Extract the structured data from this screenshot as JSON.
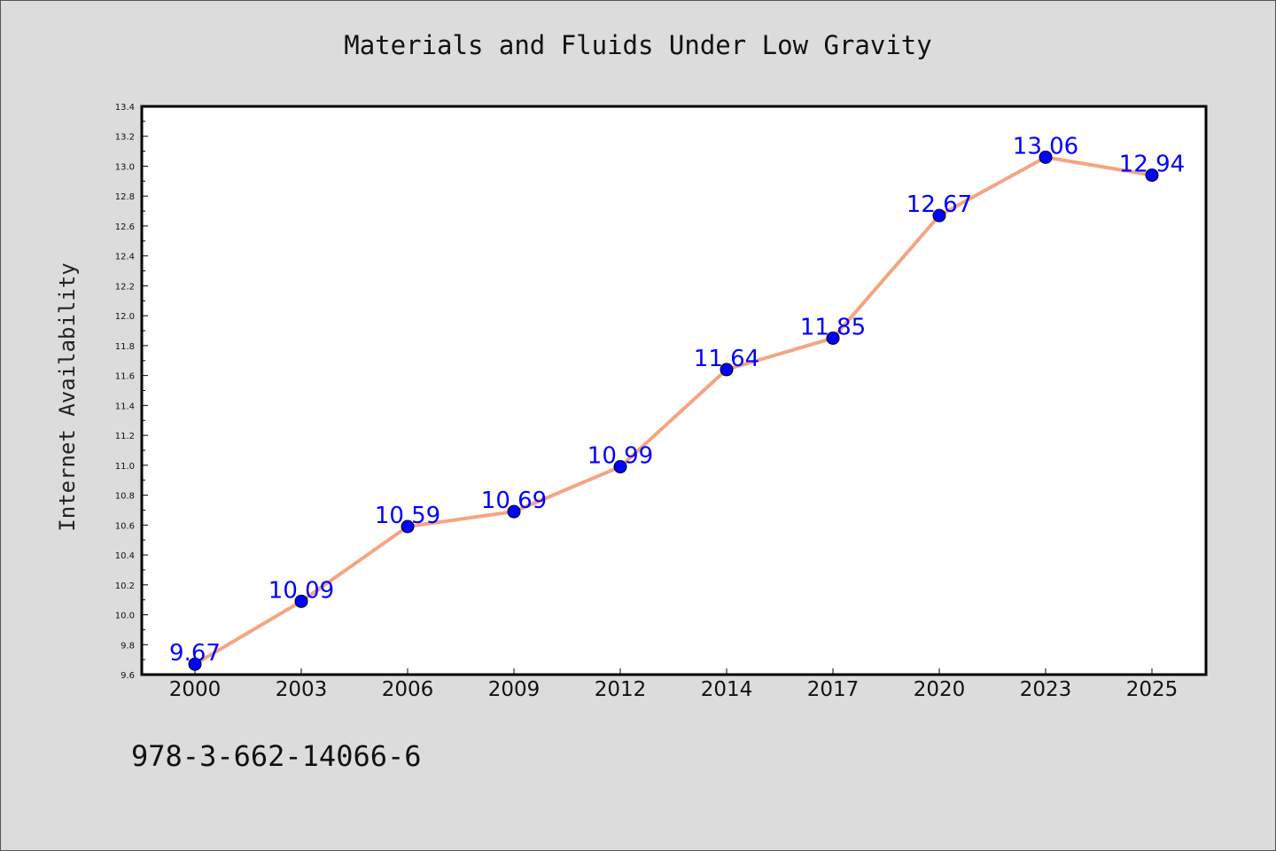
{
  "chart_data": {
    "type": "line",
    "title": "Materials and Fluids Under Low Gravity",
    "xlabel": "",
    "ylabel": "Internet Availability",
    "categories": [
      "2000",
      "2003",
      "2006",
      "2009",
      "2012",
      "2014",
      "2017",
      "2020",
      "2023",
      "2025"
    ],
    "series": [
      {
        "values": [
          9.67,
          10.09,
          10.59,
          10.69,
          10.99,
          11.64,
          11.85,
          12.67,
          13.06,
          12.94
        ],
        "line_color": "#f4a582",
        "marker_color": "#0000ff"
      }
    ],
    "data_labels": [
      "9.67",
      "10.09",
      "10.59",
      "10.69",
      "10.99",
      "11.64",
      "11.85",
      "12.67",
      "13.06",
      "12.94"
    ],
    "ylim": [
      9.6,
      13.4
    ],
    "yticks": [
      "9.6",
      "9.8",
      "10.0",
      "10.2",
      "10.4",
      "10.6",
      "10.8",
      "11.0",
      "11.2",
      "11.4",
      "11.6",
      "11.8",
      "12.0",
      "12.2",
      "12.4",
      "12.6",
      "12.8",
      "13.0",
      "13.2",
      "13.4"
    ],
    "grid": false,
    "legend": "none"
  },
  "footer": {
    "code": "978-3-662-14066-6"
  }
}
